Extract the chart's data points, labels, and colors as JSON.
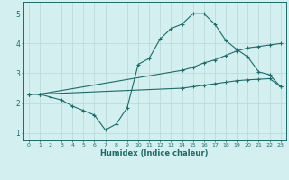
{
  "xlabel": "Humidex (Indice chaleur)",
  "bg_color": "#d4efef",
  "line_color": "#1a6b6b",
  "grid_color": "#b8d8d8",
  "xlim": [
    -0.5,
    23.5
  ],
  "ylim": [
    0.75,
    5.4
  ],
  "line1_x": [
    0,
    1,
    2,
    3,
    4,
    5,
    6,
    7,
    8,
    9,
    10,
    11,
    12,
    13,
    14,
    15,
    16,
    17,
    18,
    19,
    20,
    21,
    22,
    23
  ],
  "line1_y": [
    2.3,
    2.3,
    2.2,
    2.1,
    1.9,
    1.75,
    1.6,
    1.1,
    1.3,
    1.85,
    3.3,
    3.5,
    4.15,
    4.5,
    4.65,
    5.0,
    5.0,
    4.65,
    4.1,
    3.8,
    3.55,
    3.05,
    2.95,
    2.55
  ],
  "line2_x": [
    0,
    1,
    14,
    15,
    16,
    17,
    18,
    19,
    20,
    21,
    22,
    23
  ],
  "line2_y": [
    2.3,
    2.3,
    3.1,
    3.2,
    3.35,
    3.45,
    3.6,
    3.75,
    3.85,
    3.9,
    3.95,
    4.0
  ],
  "line3_x": [
    0,
    1,
    14,
    15,
    16,
    17,
    18,
    19,
    20,
    21,
    22,
    23
  ],
  "line3_y": [
    2.3,
    2.3,
    2.5,
    2.55,
    2.6,
    2.65,
    2.7,
    2.75,
    2.78,
    2.8,
    2.82,
    2.55
  ]
}
